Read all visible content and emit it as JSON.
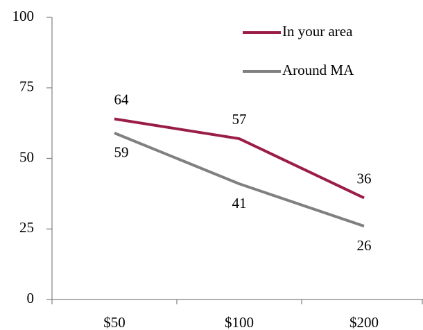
{
  "chart_data": {
    "type": "line",
    "categories": [
      "$50",
      "$100",
      "$200"
    ],
    "series": [
      {
        "name": "In your area",
        "color": "#9a1d48",
        "values": [
          64,
          57,
          36
        ]
      },
      {
        "name": "Around MA",
        "color": "#808080",
        "values": [
          59,
          41,
          26
        ]
      }
    ],
    "ylim": [
      0,
      100
    ],
    "yticks": [
      0,
      25,
      50,
      75,
      100
    ],
    "grid": false,
    "legend": "top-right"
  }
}
